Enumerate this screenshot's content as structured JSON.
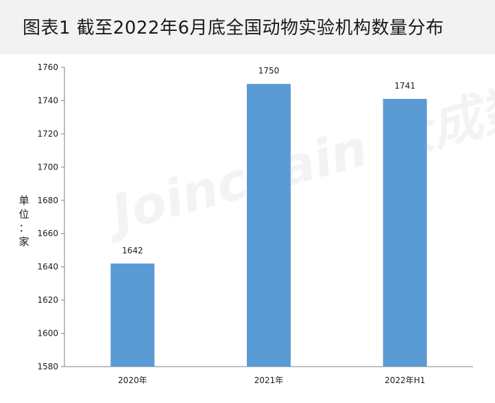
{
  "title": "图表1    截至2022年6月底全国动物实验机构数量分布",
  "watermark": "Joinchain 众成数科",
  "chart_data": {
    "type": "bar",
    "categories": [
      "2020年",
      "2021年",
      "2022年H1"
    ],
    "values": [
      1642,
      1750,
      1741
    ],
    "ylabel": "单位：家",
    "ylim": [
      1580,
      1760
    ],
    "yticks": [
      1580,
      1600,
      1620,
      1640,
      1660,
      1680,
      1700,
      1720,
      1740,
      1760
    ],
    "bar_color": "#5b9bd5",
    "grid": false
  }
}
